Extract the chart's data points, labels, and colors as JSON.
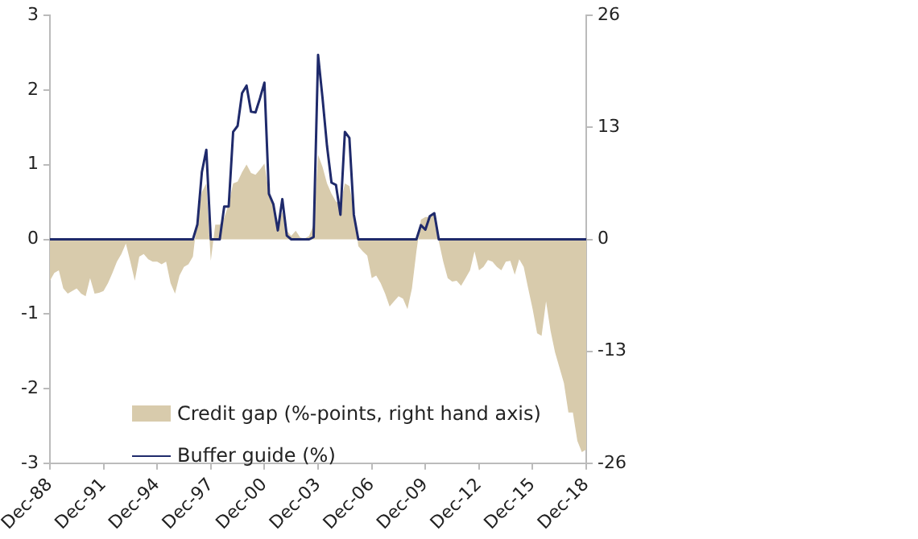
{
  "chart_data": {
    "type": "line",
    "categories": [
      "Dec-88",
      null,
      null,
      null,
      null,
      null,
      null,
      null,
      null,
      null,
      null,
      null,
      "Dec-91",
      null,
      null,
      null,
      null,
      null,
      null,
      null,
      null,
      null,
      null,
      null,
      "Dec-94",
      null,
      null,
      null,
      null,
      null,
      null,
      null,
      null,
      null,
      null,
      null,
      "Dec-97",
      null,
      null,
      null,
      null,
      null,
      null,
      null,
      null,
      null,
      null,
      null,
      "Dec-00",
      null,
      null,
      null,
      null,
      null,
      null,
      null,
      null,
      null,
      null,
      null,
      "Dec-03",
      null,
      null,
      null,
      null,
      null,
      null,
      null,
      null,
      null,
      null,
      null,
      "Dec-06",
      null,
      null,
      null,
      null,
      null,
      null,
      null,
      null,
      null,
      null,
      null,
      "Dec-09",
      null,
      null,
      null,
      null,
      null,
      null,
      null,
      null,
      null,
      null,
      null,
      "Dec-12",
      null,
      null,
      null,
      null,
      null,
      null,
      null,
      null,
      null,
      null,
      null,
      "Dec-15",
      null,
      null,
      null,
      null,
      null,
      null,
      null,
      null,
      null,
      null,
      null,
      "Dec-18"
    ],
    "series": [
      {
        "name": "Credit gap (%-points, right hand axis)",
        "type": "area",
        "axis": "y2",
        "color": "#d8cbac",
        "values": [
          -4.8,
          -3.9,
          -3.6,
          -5.7,
          -6.3,
          -6.0,
          -5.7,
          -6.3,
          -6.6,
          -4.5,
          -6.3,
          -6.2,
          -6.0,
          -5.1,
          -3.9,
          -2.6,
          -1.7,
          -0.5,
          -2.6,
          -4.8,
          -2.0,
          -1.7,
          -2.3,
          -2.6,
          -2.6,
          -2.9,
          -2.6,
          -5.1,
          -6.3,
          -4.2,
          -3.2,
          -2.9,
          -2.0,
          2.5,
          5.5,
          6.5,
          -2.5,
          1.7,
          1.7,
          2.5,
          4.1,
          6.5,
          6.7,
          7.8,
          8.7,
          7.7,
          7.5,
          8.1,
          8.8,
          5.3,
          4.1,
          1.7,
          3.2,
          1.0,
          0.4,
          1.0,
          0.2,
          0.1,
          0.4,
          1.7,
          9.8,
          8.4,
          6.5,
          5.3,
          4.4,
          4.1,
          6.5,
          6.2,
          3.5,
          -0.8,
          -1.4,
          -1.9,
          -4.5,
          -4.2,
          -5.1,
          -6.3,
          -7.8,
          -7.2,
          -6.6,
          -6.9,
          -8.1,
          -5.7,
          -1.4,
          2.3,
          2.6,
          2.6,
          2.9,
          -0.2,
          -2.6,
          -4.5,
          -4.9,
          -4.8,
          -5.4,
          -4.5,
          -3.6,
          -1.4,
          -3.6,
          -3.2,
          -2.4,
          -2.6,
          -3.2,
          -3.6,
          -2.6,
          -2.5,
          -4.1,
          -2.3,
          -3.2,
          -5.7,
          -8.1,
          -10.9,
          -11.2,
          -7.2,
          -10.6,
          -13.1,
          -14.9,
          -16.7,
          -20.1,
          -20.1,
          -23.4,
          -24.7,
          -24.4
        ]
      },
      {
        "name": "Buffer guide (%)",
        "type": "line",
        "color": "#1f2a6b",
        "values": [
          0,
          0,
          0,
          0,
          0,
          0,
          0,
          0,
          0,
          0,
          0,
          0,
          0,
          0,
          0,
          0,
          0,
          0,
          0,
          0,
          0,
          0,
          0,
          0,
          0,
          0,
          0,
          0,
          0,
          0,
          0,
          0,
          0,
          0.2,
          0.9,
          1.2,
          0,
          0,
          0,
          0.44,
          0.44,
          1.44,
          1.52,
          1.96,
          2.06,
          1.71,
          1.7,
          1.89,
          2.1,
          0.61,
          0.47,
          0.12,
          0.54,
          0.05,
          0,
          0,
          0,
          0,
          0,
          0.03,
          2.47,
          1.89,
          1.25,
          0.76,
          0.73,
          0.33,
          1.44,
          1.36,
          0.33,
          0,
          0,
          0,
          0,
          0,
          0,
          0,
          0,
          0,
          0,
          0,
          0,
          0,
          0,
          0.19,
          0.13,
          0.31,
          0.35,
          0,
          0,
          0,
          0,
          0,
          0,
          0,
          0,
          0,
          0,
          0,
          0,
          0,
          0,
          0,
          0,
          0,
          0,
          0,
          0,
          0,
          0,
          0,
          0,
          0,
          0,
          0,
          0,
          0,
          0,
          0,
          0,
          0,
          0
        ]
      }
    ],
    "ylim": [
      -3,
      3
    ],
    "yticks": [
      -3,
      -2,
      -1,
      0,
      1,
      2,
      3
    ],
    "y2lim": [
      -26,
      26
    ],
    "y2ticks": [
      -26,
      -13,
      0,
      13,
      26
    ],
    "grid": false,
    "legend": "bottom left",
    "marker": "none",
    "line_style": "solid"
  }
}
